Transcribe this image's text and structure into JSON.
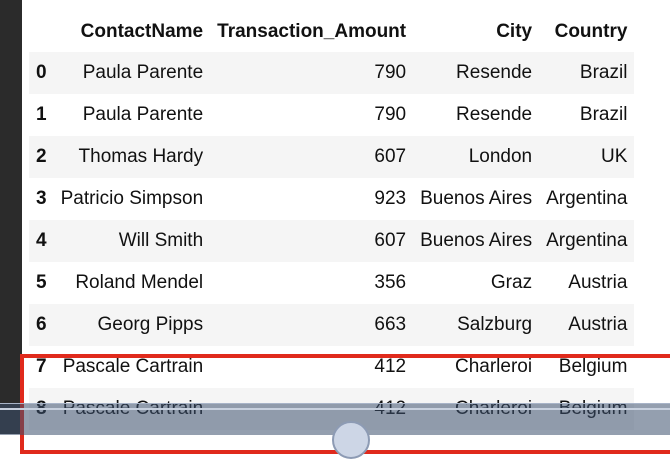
{
  "table": {
    "columns": [
      "",
      "ContactName",
      "Transaction_Amount",
      "City",
      "Country"
    ],
    "rows": [
      {
        "index": "0",
        "ContactName": "Paula Parente",
        "Transaction_Amount": "790",
        "City": "Resende",
        "Country": "Brazil"
      },
      {
        "index": "1",
        "ContactName": "Paula Parente",
        "Transaction_Amount": "790",
        "City": "Resende",
        "Country": "Brazil"
      },
      {
        "index": "2",
        "ContactName": "Thomas Hardy",
        "Transaction_Amount": "607",
        "City": "London",
        "Country": "UK"
      },
      {
        "index": "3",
        "ContactName": "Patricio Simpson",
        "Transaction_Amount": "923",
        "City": "Buenos Aires",
        "Country": "Argentina"
      },
      {
        "index": "4",
        "ContactName": "Will Smith",
        "Transaction_Amount": "607",
        "City": "Buenos Aires",
        "Country": "Argentina"
      },
      {
        "index": "5",
        "ContactName": "Roland Mendel",
        "Transaction_Amount": "356",
        "City": "Graz",
        "Country": "Austria"
      },
      {
        "index": "6",
        "ContactName": "Georg Pipps",
        "Transaction_Amount": "663",
        "City": "Salzburg",
        "Country": "Austria"
      },
      {
        "index": "7",
        "ContactName": "Pascale Cartrain",
        "Transaction_Amount": "412",
        "City": "Charleroi",
        "Country": "Belgium"
      },
      {
        "index": "8",
        "ContactName": "Pascale Cartrain",
        "Transaction_Amount": "412",
        "City": "Charleroi",
        "Country": "Belgium"
      }
    ]
  },
  "colors": {
    "highlight_border": "#e02a1c",
    "stripe": "#f5f5f5"
  }
}
